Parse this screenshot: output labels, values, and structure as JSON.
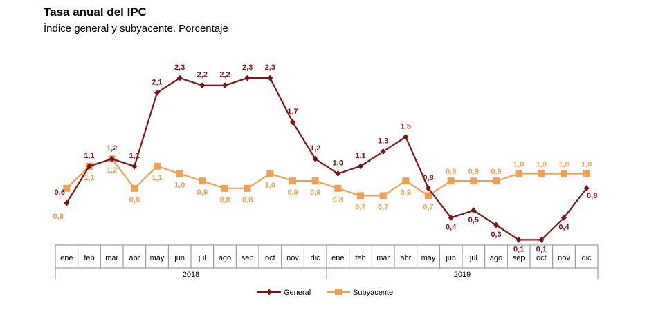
{
  "title": "Tasa anual del IPC",
  "subtitle": "Índice general y subyacente. Porcentaje",
  "chart_data": {
    "type": "line",
    "title": "Tasa anual del IPC",
    "subtitle": "Índice general y subyacente. Porcentaje",
    "categories": [
      "ene",
      "feb",
      "mar",
      "abr",
      "may",
      "jun",
      "jul",
      "ago",
      "sep",
      "oct",
      "nov",
      "dic",
      "ene",
      "feb",
      "mar",
      "abr",
      "may",
      "jun",
      "jul",
      "ago",
      "sep",
      "oct",
      "nov",
      "dic"
    ],
    "years": [
      {
        "label": "2018",
        "start": 0,
        "end": 11
      },
      {
        "label": "2019",
        "start": 12,
        "end": 23
      }
    ],
    "series": [
      {
        "name": "General",
        "color": "#7b1416",
        "marker": "diamond",
        "values": [
          0.6,
          1.1,
          1.2,
          1.1,
          2.1,
          2.3,
          2.2,
          2.2,
          2.3,
          2.3,
          1.7,
          1.2,
          1.0,
          1.1,
          1.3,
          1.5,
          0.8,
          0.4,
          0.5,
          0.3,
          0.1,
          0.1,
          0.4,
          0.8
        ],
        "labels": [
          "0,6",
          "1,1",
          "1,2",
          "1,1",
          "2,1",
          "2,3",
          "2,2",
          "2,2",
          "2,3",
          "2,3",
          "1,7",
          "1,2",
          "1,0",
          "1,1",
          "1,3",
          "1,5",
          "0,8",
          "0,4",
          "0,5",
          "0,3",
          "0,1",
          "0,1",
          "0,4",
          "0,8"
        ]
      },
      {
        "name": "Subyacente",
        "color": "#f0a050",
        "marker": "square",
        "values": [
          0.8,
          1.1,
          1.2,
          0.8,
          1.1,
          1.0,
          0.9,
          0.8,
          0.8,
          1.0,
          0.9,
          0.9,
          0.8,
          0.7,
          0.7,
          0.9,
          0.7,
          0.9,
          0.9,
          0.9,
          1.0,
          1.0,
          1.0,
          1.0
        ],
        "labels": [
          "0,8",
          "1,1",
          "1,2",
          "0,8",
          "1,1",
          "1,0",
          "0,9",
          "0,8",
          "0,8",
          "1,0",
          "0,9",
          "0,9",
          "0,8",
          "0,7",
          "0,7",
          "0,9",
          "0,7",
          "0,9",
          "0,9",
          "0,9",
          "1,0",
          "1,0",
          "1,0",
          "1,0"
        ]
      }
    ],
    "legend": {
      "position": "bottom",
      "entries": [
        "General",
        "Subyacente"
      ]
    },
    "grid": false
  }
}
